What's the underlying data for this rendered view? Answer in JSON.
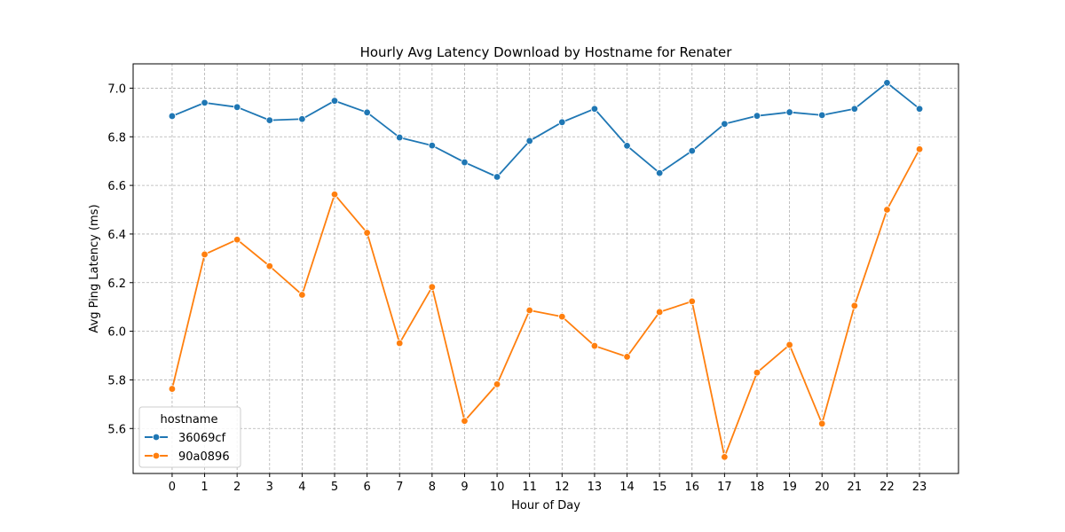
{
  "chart_data": {
    "type": "line",
    "title": "Hourly Avg Latency Download by Hostname for Renater",
    "xlabel": "Hour of Day",
    "ylabel": "Avg Ping Latency (ms)",
    "x": [
      0,
      1,
      2,
      3,
      4,
      5,
      6,
      7,
      8,
      9,
      10,
      11,
      12,
      13,
      14,
      15,
      16,
      17,
      18,
      19,
      20,
      21,
      22,
      23
    ],
    "xlim": [
      -1.2,
      24.2
    ],
    "ylim": [
      5.415,
      7.1
    ],
    "yticks": [
      5.6,
      5.8,
      6.0,
      6.2,
      6.4,
      6.6,
      6.8,
      7.0
    ],
    "grid": true,
    "legend": {
      "title": "hostname",
      "placement": "lower-left"
    },
    "series": [
      {
        "name": "36069cf",
        "color": "#1f77b4",
        "values": [
          6.885,
          6.94,
          6.922,
          6.868,
          6.873,
          6.948,
          6.9,
          6.797,
          6.764,
          6.695,
          6.635,
          6.783,
          6.86,
          6.915,
          6.763,
          6.651,
          6.742,
          6.853,
          6.886,
          6.901,
          6.889,
          6.915,
          7.022,
          6.915
        ]
      },
      {
        "name": "90a0896",
        "color": "#ff7f0e",
        "values": [
          5.763,
          6.316,
          6.377,
          6.268,
          6.15,
          6.563,
          6.405,
          5.951,
          6.182,
          5.631,
          5.782,
          6.086,
          6.06,
          5.94,
          5.895,
          6.079,
          6.123,
          5.483,
          5.83,
          5.944,
          5.62,
          6.105,
          6.5,
          6.749
        ]
      }
    ]
  }
}
